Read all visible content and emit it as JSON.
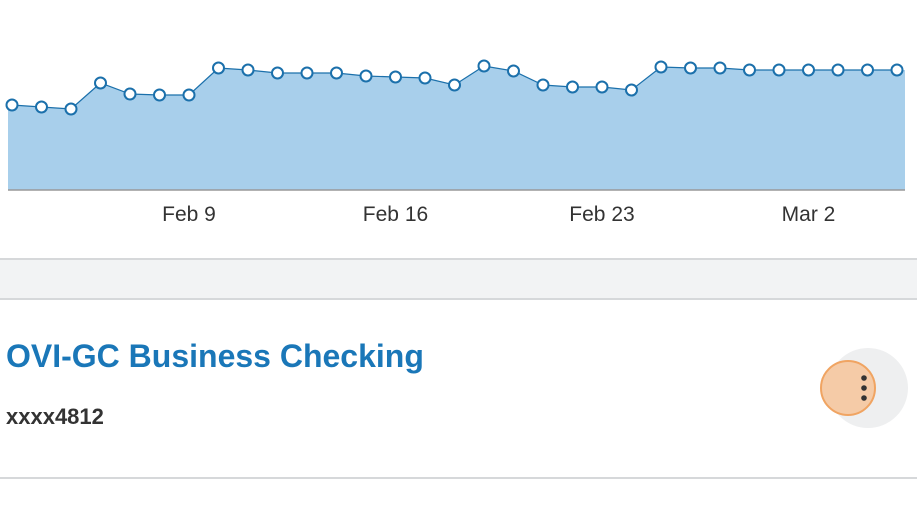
{
  "chart_data": {
    "type": "area",
    "x": [
      0,
      1,
      2,
      3,
      4,
      5,
      6,
      7,
      8,
      9,
      10,
      11,
      12,
      13,
      14,
      15,
      16,
      17,
      18,
      19,
      20,
      21,
      22,
      23,
      24,
      25,
      26,
      27,
      28,
      29,
      30
    ],
    "values": [
      85,
      83,
      81,
      107,
      96,
      95,
      95,
      122,
      120,
      117,
      117,
      117,
      114,
      113,
      112,
      105,
      124,
      119,
      105,
      103,
      103,
      100,
      123,
      122,
      122,
      120,
      120,
      120,
      120,
      120,
      120
    ],
    "xlim": [
      0,
      30
    ],
    "ylim": [
      0,
      190
    ],
    "xticks": [
      {
        "value": 6,
        "label": "Feb 9"
      },
      {
        "value": 13,
        "label": "Feb 16"
      },
      {
        "value": 20,
        "label": "Feb 23"
      },
      {
        "value": 27,
        "label": "Mar 2"
      }
    ],
    "color": "#a8cfeb",
    "line_color": "#1b70ab"
  },
  "account": {
    "title": "OVI-GC Business Checking",
    "number": "xxxx4812"
  }
}
